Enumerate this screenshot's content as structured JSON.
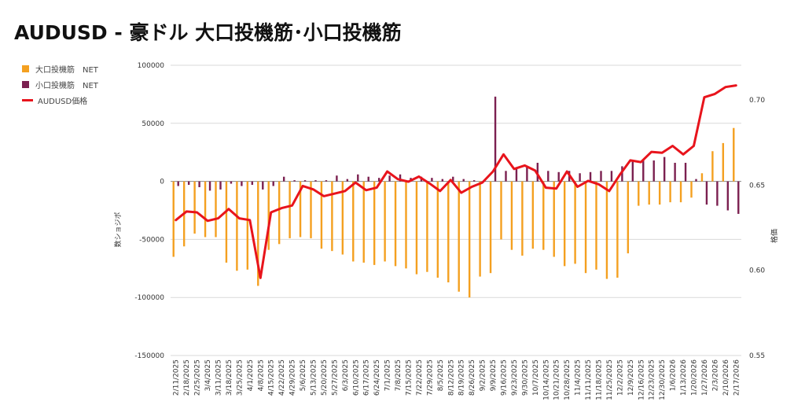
{
  "chart_data": {
    "type": "bar",
    "title": "AUDUSD - 豪ドル 大口投機筋･小口投機筋",
    "ylabel": "数ショジポ",
    "y2label": "格価",
    "ylim": [
      -150000,
      100000
    ],
    "y_ticks": [
      "100000",
      "50000",
      "0",
      "-50000",
      "-100000",
      "-150000"
    ],
    "y2lim": [
      0.55,
      0.72
    ],
    "y2_ticks": [
      "0.70",
      "0.65",
      "0.60",
      "0.55"
    ],
    "legend_position": "top-left",
    "grid": true,
    "categories": [
      "2/11/2025",
      "2/18/2025",
      "2/25/2025",
      "3/4/2025",
      "3/11/2025",
      "3/18/2025",
      "3/25/2025",
      "4/1/2025",
      "4/8/2025",
      "4/15/2025",
      "4/22/2025",
      "4/29/2025",
      "5/6/2025",
      "5/13/2025",
      "5/20/2025",
      "5/27/2025",
      "6/3/2025",
      "6/10/2025",
      "6/17/2025",
      "6/24/2025",
      "7/1/2025",
      "7/8/2025",
      "7/15/2025",
      "7/22/2025",
      "7/29/2025",
      "8/5/2025",
      "8/12/2025",
      "8/19/2025",
      "8/26/2025",
      "9/2/2025",
      "9/9/2025",
      "9/16/2025",
      "9/23/2025",
      "9/30/2025",
      "10/7/2025",
      "10/14/2025",
      "10/21/2025",
      "10/28/2025",
      "11/4/2025",
      "11/11/2025",
      "11/18/2025",
      "11/25/2025",
      "12/2/2025",
      "12/9/2025",
      "12/16/2025",
      "12/23/2025",
      "12/30/2025",
      "1/6/2026",
      "1/13/2026",
      "1/20/2026",
      "1/27/2026",
      "2/3/2026",
      "2/10/2026",
      "2/17/2026"
    ],
    "series": [
      {
        "name": "大口投機筋　NET",
        "color": "#f4a020",
        "type": "bar",
        "values": [
          -65000,
          -56000,
          -45000,
          -48000,
          -48000,
          -70000,
          -77000,
          -76000,
          -90000,
          -59000,
          -54000,
          -49000,
          -48000,
          -49000,
          -58000,
          -60000,
          -63000,
          -69000,
          -70000,
          -72000,
          -69000,
          -73000,
          -75000,
          -80000,
          -78000,
          -83000,
          -87000,
          -95000,
          -100000,
          -82000,
          -79000,
          -50000,
          -59000,
          -64000,
          -58000,
          -59000,
          -65000,
          -73000,
          -71000,
          -79000,
          -76000,
          -84000,
          -83000,
          -62000,
          -21000,
          -20000,
          -20000,
          -18000,
          -18000,
          -14000,
          7000,
          26000,
          33000,
          46000
        ]
      },
      {
        "name": "小口投機筋　NET",
        "color": "#7b2050",
        "type": "bar",
        "values": [
          -4000,
          -3000,
          -5000,
          -8000,
          -7000,
          -2000,
          -4000,
          -3000,
          -7000,
          -4000,
          4000,
          1000,
          1000,
          1000,
          1000,
          5000,
          2000,
          6000,
          4000,
          3000,
          5000,
          6000,
          3000,
          4000,
          3000,
          2000,
          4000,
          2000,
          1000,
          1000,
          73000,
          9000,
          11000,
          12000,
          16000,
          9000,
          8000,
          9000,
          7000,
          8000,
          9000,
          9000,
          13000,
          18000,
          18000,
          18000,
          21000,
          16000,
          16000,
          2000,
          -20000,
          -21000,
          -25000,
          -28000
        ]
      },
      {
        "name": "AUDUSD価格",
        "color": "#e8141c",
        "type": "line",
        "axis": "right",
        "values": [
          0.6295,
          0.6345,
          0.634,
          0.629,
          0.6305,
          0.636,
          0.6305,
          0.6295,
          0.5955,
          0.634,
          0.6365,
          0.638,
          0.6495,
          0.6475,
          0.6435,
          0.645,
          0.6465,
          0.6515,
          0.647,
          0.6485,
          0.658,
          0.6535,
          0.652,
          0.655,
          0.651,
          0.6465,
          0.653,
          0.6455,
          0.649,
          0.6515,
          0.658,
          0.668,
          0.6595,
          0.6615,
          0.6585,
          0.6485,
          0.648,
          0.658,
          0.649,
          0.6525,
          0.6505,
          0.6465,
          0.656,
          0.6645,
          0.6635,
          0.6695,
          0.669,
          0.673,
          0.668,
          0.673,
          0.7015,
          0.7035,
          0.7075,
          0.7085
        ]
      }
    ]
  }
}
